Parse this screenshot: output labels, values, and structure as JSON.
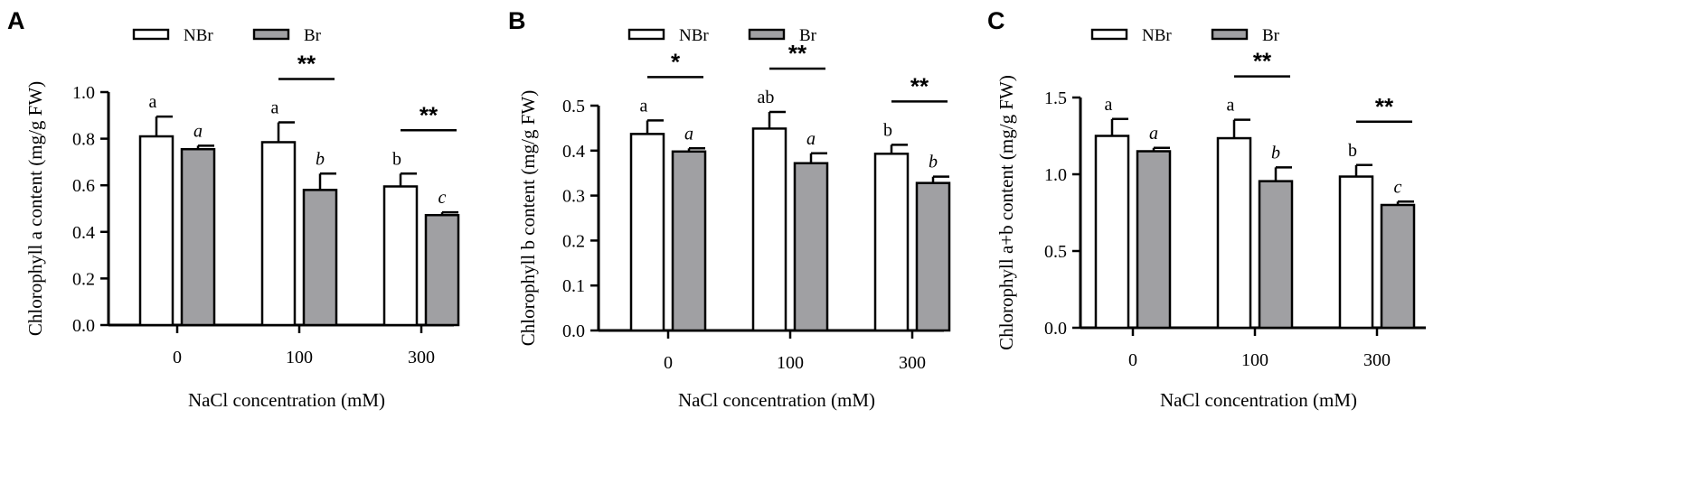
{
  "figure": {
    "legend": {
      "entries": [
        "NBr",
        "Br"
      ]
    }
  },
  "chart_data": [
    {
      "type": "bar",
      "panel_label": "A",
      "title": "",
      "categories": [
        "0",
        "100",
        "300"
      ],
      "xlabel": "NaCl concentration (mM)",
      "ylabel": "Chlorophyll a content (mg/g FW)",
      "ylim": [
        0,
        1.0
      ],
      "yticks": [
        "0.0",
        "0.2",
        "0.4",
        "0.6",
        "0.8",
        "1.0"
      ],
      "legend": [
        "NBr",
        "Br"
      ],
      "series": [
        {
          "name": "NBr",
          "color": "#ffffff",
          "values": [
            0.81,
            0.785,
            0.595
          ],
          "errors": [
            0.085,
            0.085,
            0.055
          ],
          "letters": [
            "a",
            "a",
            "b"
          ]
        },
        {
          "name": "Br",
          "color": "#a0a0a3",
          "values": [
            0.755,
            0.58,
            0.472
          ],
          "errors": [
            0.015,
            0.07,
            0.012
          ],
          "letters": [
            "a",
            "b",
            "c"
          ]
        }
      ],
      "significance": [
        "",
        "**",
        "**"
      ]
    },
    {
      "type": "bar",
      "panel_label": "B",
      "title": "",
      "categories": [
        "0",
        "100",
        "300"
      ],
      "xlabel": "NaCl concentration (mM)",
      "ylabel": "Chlorophyll b content (mg/g FW)",
      "ylim": [
        0,
        0.5
      ],
      "yticks": [
        "0.0",
        "0.1",
        "0.2",
        "0.3",
        "0.4",
        "0.5"
      ],
      "legend": [
        "NBr",
        "Br"
      ],
      "series": [
        {
          "name": "NBr",
          "color": "#ffffff",
          "values": [
            0.437,
            0.449,
            0.393
          ],
          "errors": [
            0.03,
            0.037,
            0.02
          ],
          "letters": [
            "a",
            "ab",
            "b"
          ]
        },
        {
          "name": "Br",
          "color": "#a0a0a3",
          "values": [
            0.398,
            0.372,
            0.328
          ],
          "errors": [
            0.007,
            0.022,
            0.014
          ],
          "letters": [
            "a",
            "a",
            "b"
          ]
        }
      ],
      "significance": [
        "*",
        "**",
        "**"
      ]
    },
    {
      "type": "bar",
      "panel_label": "C",
      "title": "",
      "categories": [
        "0",
        "100",
        "300"
      ],
      "xlabel": "NaCl concentration (mM)",
      "ylabel": "Chlorophyll a+b content (mg/g FW)",
      "ylim": [
        0,
        1.5
      ],
      "yticks": [
        "0.0",
        "0.5",
        "1.0",
        "1.5"
      ],
      "legend": [
        "NBr",
        "Br"
      ],
      "series": [
        {
          "name": "NBr",
          "color": "#ffffff",
          "values": [
            1.25,
            1.235,
            0.985
          ],
          "errors": [
            0.11,
            0.12,
            0.075
          ],
          "letters": [
            "a",
            "a",
            "b"
          ]
        },
        {
          "name": "Br",
          "color": "#a0a0a3",
          "values": [
            1.15,
            0.955,
            0.8
          ],
          "errors": [
            0.022,
            0.09,
            0.022
          ],
          "letters": [
            "a",
            "b",
            "c"
          ]
        }
      ],
      "significance": [
        "",
        "**",
        "**"
      ]
    }
  ]
}
